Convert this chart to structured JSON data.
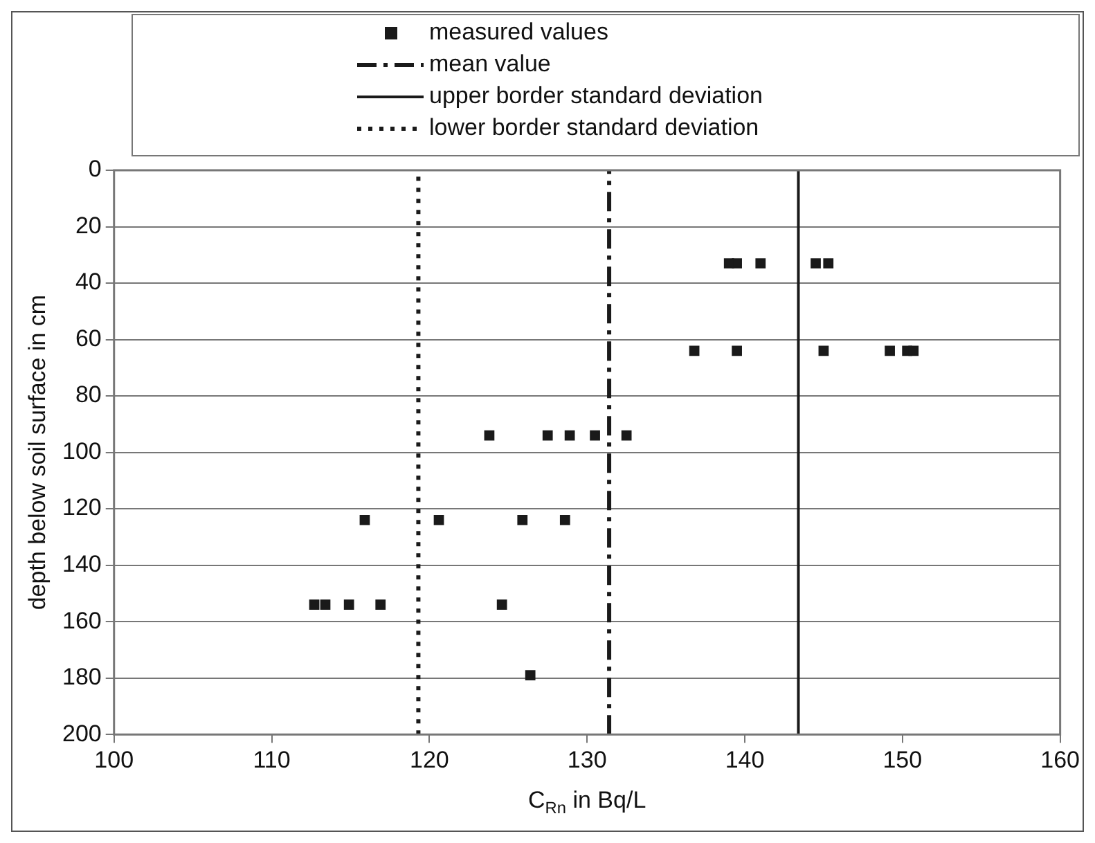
{
  "chart_data": {
    "type": "scatter",
    "xlabel": "C$_{Rn}$ in Bq/L",
    "ylabel": "depth below soil surface in cm",
    "series": [
      {
        "name": "measured values",
        "color": "#1a1a1a",
        "x": [
          139.0,
          139.5,
          141.0,
          144.5,
          145.3,
          136.8,
          139.5,
          145.0,
          149.2,
          150.3,
          150.7,
          123.8,
          127.5,
          128.9,
          130.5,
          132.5,
          115.9,
          120.3,
          120.6,
          125.9,
          128.6,
          112.7,
          113.4,
          114.9,
          116.9,
          124.6,
          126.4
        ],
        "values": [
          33,
          33,
          33,
          33,
          33,
          64,
          64,
          64,
          64,
          64,
          64,
          94,
          94,
          94,
          94,
          94,
          124,
          null,
          124,
          124,
          124,
          154,
          154,
          154,
          154,
          154,
          179
        ]
      }
    ],
    "ref_lines": [
      {
        "axis": "x",
        "value": 131.4,
        "label": "mean value",
        "line_style": "dashdot",
        "color": "#1a1a1a"
      },
      {
        "axis": "x",
        "value": 143.4,
        "label": "upper border standard deviation",
        "line_style": "solid",
        "color": "#1a1a1a"
      },
      {
        "axis": "x",
        "value": 119.3,
        "label": "lower border standard deviation",
        "line_style": "dotted",
        "color": "#1a1a1a"
      }
    ],
    "marker": "square",
    "xlim": [
      100,
      160
    ],
    "xticks": [
      100,
      110,
      120,
      130,
      140,
      150,
      160
    ],
    "ylim": [
      200,
      0
    ],
    "yticks": [
      0,
      20,
      40,
      60,
      80,
      100,
      120,
      140,
      160,
      180,
      200
    ],
    "grid": "y",
    "legend": "top"
  }
}
